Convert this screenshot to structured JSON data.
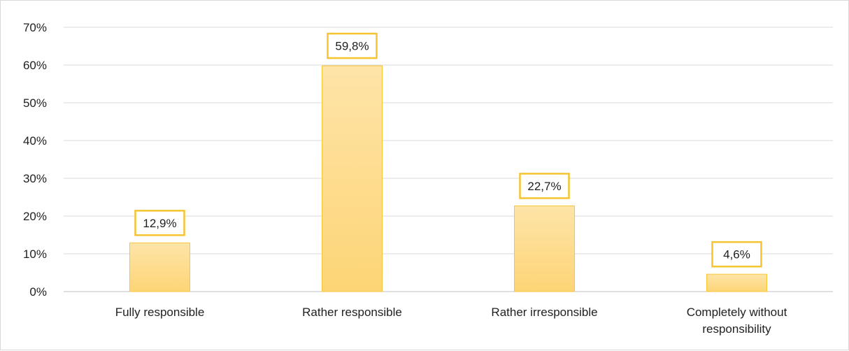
{
  "chart_data": {
    "type": "bar",
    "categories": [
      "Fully responsible",
      "Rather responsible",
      "Rather irresponsible",
      "Completely without responsibility"
    ],
    "category_lines": [
      [
        "Fully responsible"
      ],
      [
        "Rather responsible"
      ],
      [
        "Rather irresponsible"
      ],
      [
        "Completely without",
        "responsibility"
      ]
    ],
    "values": [
      12.9,
      59.8,
      22.7,
      4.6
    ],
    "data_labels": [
      "12,9%",
      "59,8%",
      "22,7%",
      "4,6%"
    ],
    "ylim": [
      0,
      70
    ],
    "yticks": [
      0,
      10,
      20,
      30,
      40,
      50,
      60,
      70
    ],
    "ytick_labels": [
      "0%",
      "10%",
      "20%",
      "30%",
      "40%",
      "50%",
      "60%",
      "70%"
    ],
    "title": "",
    "xlabel": "",
    "ylabel": "",
    "grid": true,
    "legend": "none",
    "colors": {
      "bar_top": "#fee4a8",
      "bar_bottom": "#fdd576",
      "bar_border": "#f6c53a",
      "label_border": "#f5c430",
      "grid": "#d9d9d9",
      "axis": "#bfbfbf"
    }
  }
}
